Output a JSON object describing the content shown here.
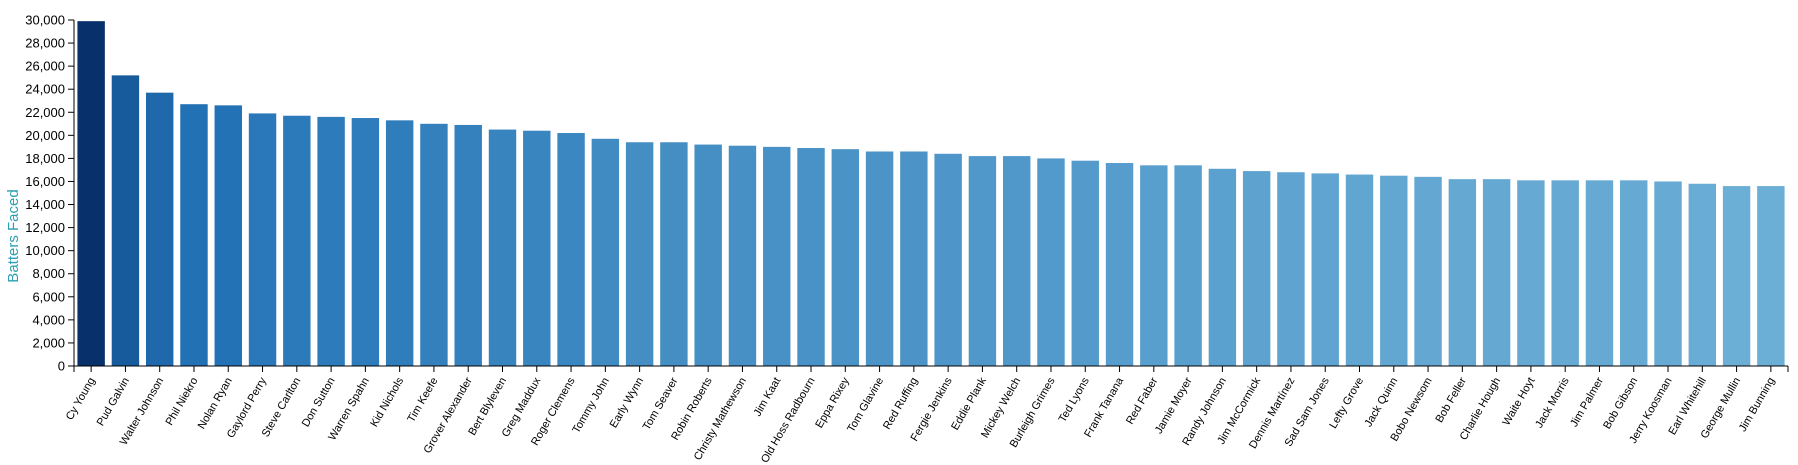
{
  "chart_data": {
    "type": "bar",
    "ylabel": "Batters Faced",
    "ylabel_color": "#2aa0b0",
    "ylim": [
      0,
      30000
    ],
    "yticks": [
      "0",
      "2,000",
      "4,000",
      "6,000",
      "8,000",
      "10,000",
      "12,000",
      "14,000",
      "16,000",
      "18,000",
      "20,000",
      "22,000",
      "24,000",
      "26,000",
      "28,000",
      "30,000"
    ],
    "color_scale": {
      "high": "#08306b",
      "mid": "#2171b5",
      "low": "#6baed6"
    },
    "categories": [
      "Cy Young",
      "Pud Galvin",
      "Walter Johnson",
      "Phil Niekro",
      "Nolan Ryan",
      "Gaylord Perry",
      "Steve Carlton",
      "Don Sutton",
      "Warren Spahn",
      "Kid Nichols",
      "Tim Keefe",
      "Grover Alexander",
      "Bert Blyleven",
      "Greg Maddux",
      "Roger Clemens",
      "Tommy John",
      "Early Wynn",
      "Tom Seaver",
      "Robin Roberts",
      "Christy Mathewson",
      "Jim Kaat",
      "Old Hoss Radbourn",
      "Eppa Rixey",
      "Tom Glavine",
      "Red Ruffing",
      "Fergie Jenkins",
      "Eddie Plank",
      "Mickey Welch",
      "Burleigh Grimes",
      "Ted Lyons",
      "Frank Tanana",
      "Red Faber",
      "Jamie Moyer",
      "Randy Johnson",
      "Jim McCormick",
      "Dennis Martínez",
      "Sad Sam Jones",
      "Lefty Grove",
      "Jack Quinn",
      "Bobo Newsom",
      "Bob Feller",
      "Charlie Hough",
      "Waite Hoyt",
      "Jack Morris",
      "Jim Palmer",
      "Bob Gibson",
      "Jerry Koosman",
      "Earl Whitehill",
      "George Mullin",
      "Jim Bunning"
    ],
    "values": [
      29900,
      25200,
      23700,
      22700,
      22600,
      21900,
      21700,
      21600,
      21500,
      21300,
      21000,
      20900,
      20500,
      20400,
      20200,
      19700,
      19400,
      19400,
      19200,
      19100,
      19000,
      18900,
      18800,
      18600,
      18600,
      18400,
      18200,
      18200,
      18000,
      17800,
      17600,
      17400,
      17400,
      17100,
      16900,
      16800,
      16700,
      16600,
      16500,
      16400,
      16200,
      16200,
      16100,
      16100,
      16100,
      16100,
      16000,
      15800,
      15600,
      15600
    ]
  }
}
